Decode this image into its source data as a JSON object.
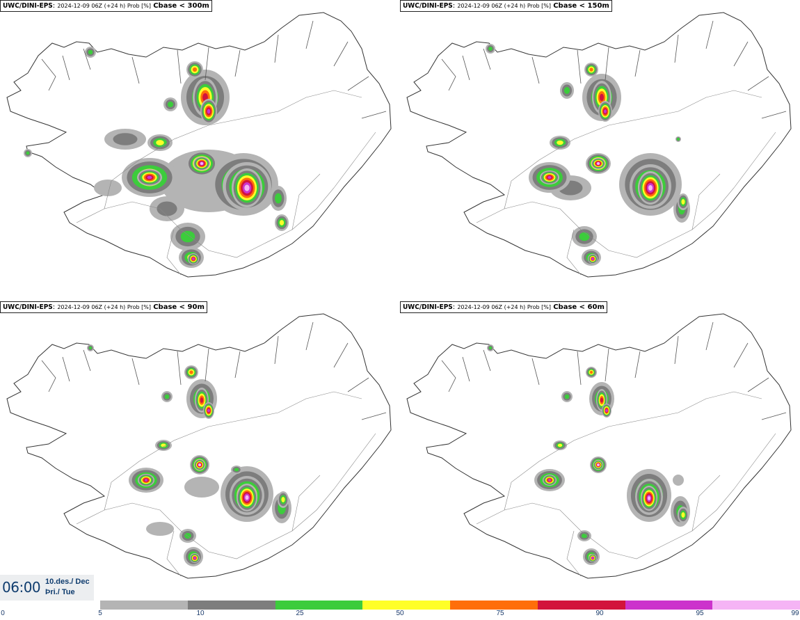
{
  "panels": [
    {
      "model": "UWC/DINI-EPS",
      "meta": "2024-12-09 06Z (+24 h) Prob [%]",
      "variable": "Cbase < 300m"
    },
    {
      "model": "UWC/DINI-EPS",
      "meta": "2024-12-09 06Z (+24 h) Prob [%]",
      "variable": "Cbase < 150m"
    },
    {
      "model": "UWC/DINI-EPS",
      "meta": "2024-12-09 06Z (+24 h) Prob [%]",
      "variable": "Cbase < 90m"
    },
    {
      "model": "UWC/DINI-EPS",
      "meta": "2024-12-09 06Z (+24 h) Prob [%]",
      "variable": "Cbase < 60m"
    }
  ],
  "valid_time": {
    "time": "06:00",
    "date_line1": "10.des./ Dec",
    "date_line2": "Þri./ Tue"
  },
  "colorbar": {
    "ticks": [
      "0",
      "5",
      "10",
      "25",
      "50",
      "75",
      "90",
      "95",
      "99"
    ],
    "colors": [
      "#b4b4b4",
      "#7d7d7d",
      "#3ccc3c",
      "#ffff28",
      "#ff6e0a",
      "#d2143c",
      "#cc33cc",
      "#f5b4f5"
    ]
  },
  "map_colors": {
    "gray_light": "#b4b4b4",
    "gray_dark": "#7d7d7d",
    "green": "#3ccc3c",
    "yellow": "#ffff28",
    "orange": "#ff6e0a",
    "red": "#d2143c",
    "magenta": "#cc33cc",
    "pink": "#f5b4f5"
  }
}
